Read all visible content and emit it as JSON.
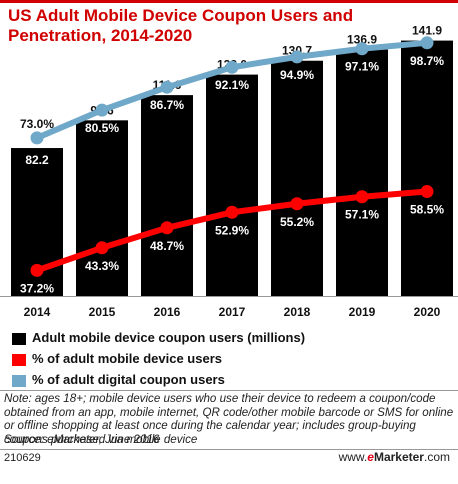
{
  "title": "US Adult Mobile Device Coupon Users and Penetration, 2014-2020",
  "colors": {
    "accent": "#d00000",
    "bar": "#000000",
    "line_mobile": "#ff0000",
    "line_digital": "#6fa8c9"
  },
  "chart_data": {
    "type": "bar",
    "title": "US Adult Mobile Device Coupon Users and Penetration, 2014-2020",
    "categories": [
      "2014",
      "2015",
      "2016",
      "2017",
      "2018",
      "2019",
      "2020"
    ],
    "bars": {
      "name": "Adult mobile device coupon users (millions)",
      "values": [
        82.2,
        97.6,
        111.6,
        123.0,
        130.7,
        136.9,
        141.9
      ],
      "labels": [
        "82.2",
        "97.6",
        "111.6",
        "123.0",
        "130.7",
        "136.9",
        "141.9"
      ]
    },
    "series": [
      {
        "name": "% of adult mobile device users",
        "type": "line",
        "color": "#ff0000",
        "values": [
          37.2,
          43.3,
          48.7,
          52.9,
          55.2,
          57.1,
          58.5
        ],
        "labels": [
          "37.2%",
          "43.3%",
          "48.7%",
          "52.9%",
          "55.2%",
          "57.1%",
          "58.5%"
        ]
      },
      {
        "name": "% of adult digital coupon users",
        "type": "line",
        "color": "#6fa8c9",
        "values": [
          73.0,
          80.5,
          86.7,
          92.1,
          94.9,
          97.1,
          98.7
        ],
        "labels": [
          "73.0%",
          "80.5%",
          "86.7%",
          "92.1%",
          "94.9%",
          "97.1%",
          "98.7%"
        ]
      }
    ],
    "legend_position": "bottom",
    "grid": false
  },
  "legend": [
    {
      "label": "Adult mobile device coupon users (millions)",
      "color": "#000000"
    },
    {
      "label": "% of adult mobile device users",
      "color": "#ff0000"
    },
    {
      "label": "% of adult digital coupon users",
      "color": "#6fa8c9"
    }
  ],
  "note": "Note: ages 18+; mobile device users who use their device to redeem a coupon/code obtained from an app, mobile internet, QR code/other mobile barcode or SMS for online or offline shopping at least once during the calendar year; includes group-buying coupons purchased via mobile device",
  "source": "Source: eMarketer, June 2016",
  "footer": {
    "chart_id": "210629",
    "brand_prefix": "www.",
    "brand_e": "e",
    "brand_name": "Marketer",
    "brand_suffix": ".com"
  }
}
